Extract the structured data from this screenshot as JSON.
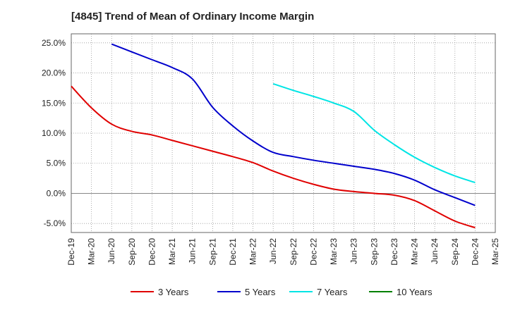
{
  "chart_data": {
    "type": "line",
    "title": "[4845]  Trend of Mean of Ordinary Income Margin",
    "xlabel": "",
    "ylabel": "",
    "categories": [
      "Dec-19",
      "Mar-20",
      "Jun-20",
      "Sep-20",
      "Dec-20",
      "Mar-21",
      "Jun-21",
      "Sep-21",
      "Dec-21",
      "Mar-22",
      "Jun-22",
      "Sep-22",
      "Dec-22",
      "Mar-23",
      "Jun-23",
      "Sep-23",
      "Dec-23",
      "Mar-24",
      "Jun-24",
      "Sep-24",
      "Dec-24",
      "Mar-25"
    ],
    "y_ticks": [
      "25.0%",
      "20.0%",
      "15.0%",
      "10.0%",
      "5.0%",
      "0.0%",
      "-5.0%"
    ],
    "y_tick_values": [
      25,
      20,
      15,
      10,
      5,
      0,
      -5
    ],
    "ylim": [
      -6.5,
      26.5
    ],
    "grid": true,
    "legend_position": "bottom",
    "series": [
      {
        "name": "3 Years",
        "color": "#e00000",
        "values": [
          17.8,
          14.2,
          11.5,
          10.3,
          9.7,
          8.8,
          7.9,
          7.0,
          6.1,
          5.1,
          3.7,
          2.5,
          1.5,
          0.7,
          0.3,
          0.0,
          -0.3,
          -1.2,
          -2.9,
          -4.6,
          -5.7,
          null
        ]
      },
      {
        "name": "5 Years",
        "color": "#0000cc",
        "values": [
          null,
          null,
          24.8,
          23.5,
          22.2,
          20.9,
          19.0,
          14.3,
          11.2,
          8.7,
          6.8,
          6.1,
          5.5,
          5.0,
          4.5,
          4.0,
          3.3,
          2.2,
          0.6,
          -0.7,
          -2.0,
          null
        ]
      },
      {
        "name": "7 Years",
        "color": "#00e5e5",
        "values": [
          null,
          null,
          null,
          null,
          null,
          null,
          null,
          null,
          null,
          null,
          18.2,
          17.1,
          16.1,
          15.0,
          13.6,
          10.5,
          8.1,
          6.0,
          4.3,
          2.9,
          1.8,
          null
        ]
      },
      {
        "name": "10 Years",
        "color": "#008000",
        "values": [
          null,
          null,
          null,
          null,
          null,
          null,
          null,
          null,
          null,
          null,
          null,
          null,
          null,
          null,
          null,
          null,
          null,
          null,
          null,
          null,
          null,
          null
        ]
      }
    ]
  }
}
